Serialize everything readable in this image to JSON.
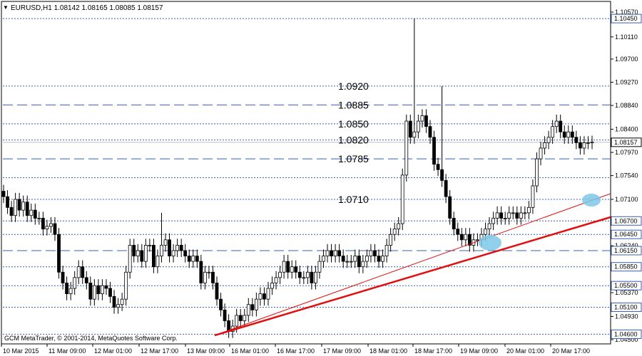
{
  "header": {
    "symbol_line": "EURUSD,H1  1.08142 1.08165 1.08085 1.08157",
    "menu_glyph": "▼"
  },
  "copyright": "GCM MetaTrader, © 2001-2014, MetaQuotes Software Corp.",
  "colors": {
    "up_candle": "#000000",
    "down_candle": "#000000",
    "trendline": "#e01010",
    "level_line": "#3a5fb4",
    "highlight": "#7ec8e8"
  },
  "chart_data": {
    "type": "candlestick",
    "symbol": "EURUSD",
    "timeframe": "H1",
    "last_price": 1.08157,
    "ylim": [
      1.045,
      1.1057
    ],
    "price_ticks": [
      "1.10570",
      "1.10110",
      "1.09700",
      "1.09270",
      "1.08840",
      "1.08400",
      "1.07970",
      "1.07540",
      "1.07100",
      "1.06700",
      "1.06240",
      "1.05850",
      "1.05370",
      "1.04930",
      "1.04500"
    ],
    "boxed_price_labels": [
      "1.10450",
      "1.06700",
      "1.06450",
      "1.06150",
      "1.05850",
      "1.05500",
      "1.05100",
      "1.04600"
    ],
    "dashed_levels": [
      1.1045,
      1.092,
      1.0885,
      1.085,
      1.082,
      1.0785,
      1.075,
      1.071,
      1.067,
      1.0645,
      1.0615,
      1.0585,
      1.055,
      1.051,
      1.046
    ],
    "long_dash_levels": [
      1.0885,
      1.0785,
      1.0615
    ],
    "level_labels": [
      {
        "text": "1.0920",
        "price": 1.092
      },
      {
        "text": "1.0885",
        "price": 1.0885
      },
      {
        "text": "1.0850",
        "price": 1.085
      },
      {
        "text": "1.0820",
        "price": 1.082
      },
      {
        "text": "1.0785",
        "price": 1.0785
      },
      {
        "text": "1.0710",
        "price": 1.071
      }
    ],
    "time_labels": [
      "10 Mar 2015",
      "11 Mar 09:00",
      "12 Mar 01:00",
      "12 Mar 17:00",
      "13 Mar 09:00",
      "16 Mar 01:00",
      "16 Mar 17:00",
      "17 Mar 09:00",
      "18 Mar 01:00",
      "18 Mar 17:00",
      "19 Mar 09:00",
      "20 Mar 01:00",
      "20 Mar 17:00"
    ],
    "candles_close": [
      1.0715,
      1.0695,
      1.068,
      1.071,
      1.069,
      1.0705,
      1.068,
      1.069,
      1.0675,
      1.0675,
      1.0655,
      1.066,
      1.0665,
      1.0645,
      1.0575,
      1.0555,
      1.0535,
      1.0545,
      1.0565,
      1.0585,
      1.0565,
      1.0555,
      1.0525,
      1.055,
      1.0535,
      1.055,
      1.0545,
      1.053,
      1.051,
      1.0515,
      1.0525,
      1.0575,
      1.0625,
      1.0605,
      1.0615,
      1.0595,
      1.0625,
      1.0625,
      1.0585,
      1.0605,
      1.0625,
      1.0635,
      1.0605,
      1.0615,
      1.0625,
      1.0615,
      1.0605,
      1.0595,
      1.0605,
      1.0595,
      1.0555,
      1.0575,
      1.0575,
      1.0555,
      1.0525,
      1.0505,
      1.0485,
      1.0465,
      1.0475,
      1.0495,
      1.0485,
      1.0495,
      1.0515,
      1.0505,
      1.0525,
      1.0535,
      1.0525,
      1.0545,
      1.0555,
      1.0565,
      1.0575,
      1.0595,
      1.0575,
      1.0585,
      1.0575,
      1.0565,
      1.0565,
      1.0575,
      1.0555,
      1.0575,
      1.0595,
      1.0605,
      1.0615,
      1.0605,
      1.0615,
      1.0605,
      1.0595,
      1.0595,
      1.0595,
      1.0605,
      1.0585,
      1.0595,
      1.0605,
      1.0615,
      1.0605,
      1.0595,
      1.0605,
      1.0625,
      1.0645,
      1.0655,
      1.0665,
      1.0755,
      1.0855,
      1.0825,
      1.0835,
      1.0855,
      1.0865,
      1.0845,
      1.0825,
      1.0775,
      1.0765,
      1.0745,
      1.0715,
      1.0675,
      1.0655,
      1.0645,
      1.0635,
      1.0645,
      1.0625,
      1.0635,
      1.0635,
      1.0645,
      1.0655,
      1.0665,
      1.0675,
      1.0685,
      1.0675,
      1.0675,
      1.0685,
      1.0685,
      1.0675,
      1.0685,
      1.0685,
      1.0695,
      1.0735,
      1.0785,
      1.0805,
      1.0815,
      1.0825,
      1.0845,
      1.0855,
      1.0835,
      1.0825,
      1.0835,
      1.0825,
      1.0815,
      1.0805,
      1.0815,
      1.0815,
      1.0816
    ]
  }
}
